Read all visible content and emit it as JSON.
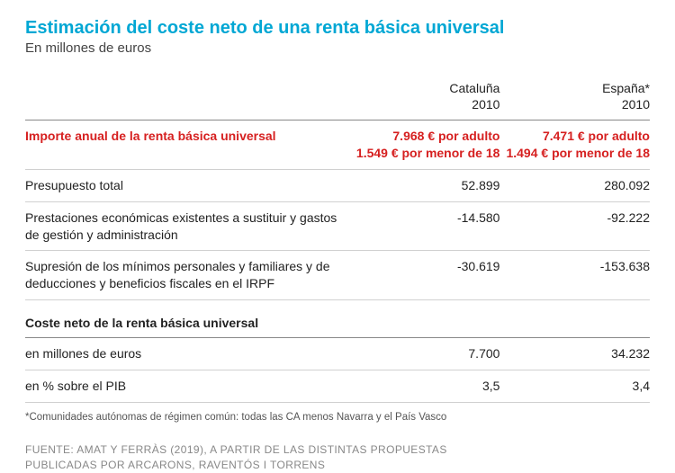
{
  "header": {
    "title": "Estimación del coste neto de una renta básica universal",
    "subtitle": "En millones de euros",
    "title_color": "#00a7d4",
    "subtitle_color": "#444444"
  },
  "table": {
    "columns": [
      {
        "name": "Cataluña",
        "year": "2010"
      },
      {
        "name": "España*",
        "year": "2010"
      }
    ],
    "highlight_row": {
      "label": "Importe anual de la renta básica universal",
      "values": [
        {
          "adult": "7.968 € por adulto",
          "minor": "1.549 € por menor de 18"
        },
        {
          "adult": "7.471 € por adulto",
          "minor": "1.494 € por menor de 18"
        }
      ],
      "label_color": "#d62020",
      "value_color": "#d62020"
    },
    "rows": [
      {
        "label": "Presupuesto total",
        "values": [
          "52.899",
          "280.092"
        ]
      },
      {
        "label": "Prestaciones económicas existentes a sustituir y  gastos de gestión y administración",
        "values": [
          "-14.580",
          "-92.222"
        ]
      },
      {
        "label": "Supresión de los mínimos personales y familiares y de deducciones y beneficios fiscales en el IRPF",
        "values": [
          "-30.619",
          "-153.638"
        ]
      }
    ],
    "net_section": {
      "heading": "Coste neto de la renta básica universal",
      "rows": [
        {
          "label": "en millones de euros",
          "values": [
            "7.700",
            "34.232"
          ]
        },
        {
          "label": "en % sobre el PIB",
          "values": [
            "3,5",
            "3,4"
          ]
        }
      ]
    }
  },
  "footnote": "*Comunidades autónomas de régimen común: todas las CA menos Navarra y el País Vasco",
  "source": {
    "line1": "FUENTE: AMAT Y FERRÀS (2019), A PARTIR DE LAS DISTINTAS PROPUESTAS",
    "line2": "PUBLICADAS POR ARCARONS, RAVENTÓS I TORRENS"
  },
  "style": {
    "background_color": "#ffffff",
    "text_color": "#222222",
    "rule_color": "#888888",
    "row_rule_color": "#d0d0d0",
    "title_fontsize": 20,
    "body_fontsize": 14,
    "footnote_fontsize": 11.5,
    "source_fontsize": 12
  }
}
